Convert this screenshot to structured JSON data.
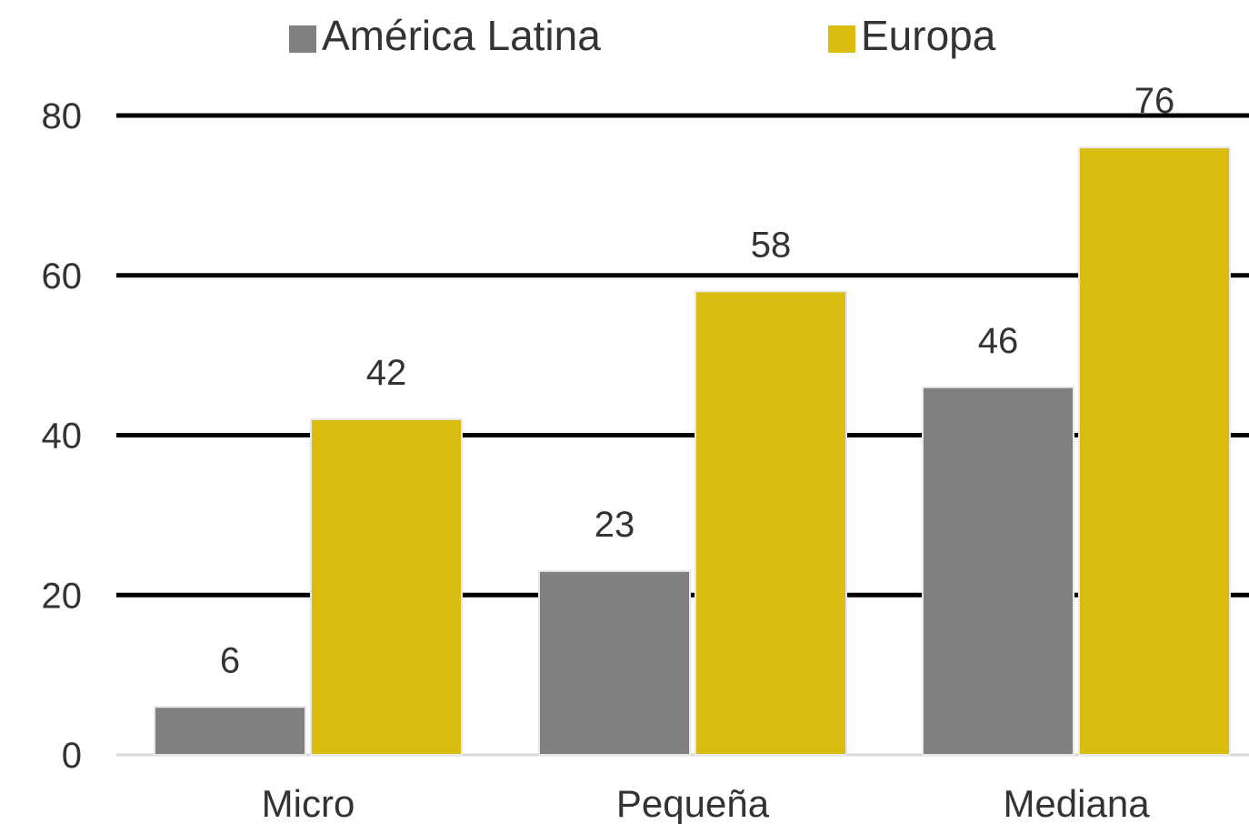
{
  "chart_data": {
    "type": "bar",
    "categories": [
      "Micro",
      "Pequeña",
      "Mediana"
    ],
    "series": [
      {
        "name": "América Latina",
        "values": [
          6,
          23,
          46
        ],
        "color": "#808080"
      },
      {
        "name": "Europa",
        "values": [
          42,
          58,
          76
        ],
        "color": "#D9BE10"
      }
    ],
    "yticks": [
      "0",
      "20",
      "40",
      "60",
      "80"
    ],
    "ylim": [
      0,
      80
    ],
    "grid": true,
    "legend_position": "top-center",
    "data_labels": true,
    "title": "",
    "xlabel": "",
    "ylabel": ""
  }
}
